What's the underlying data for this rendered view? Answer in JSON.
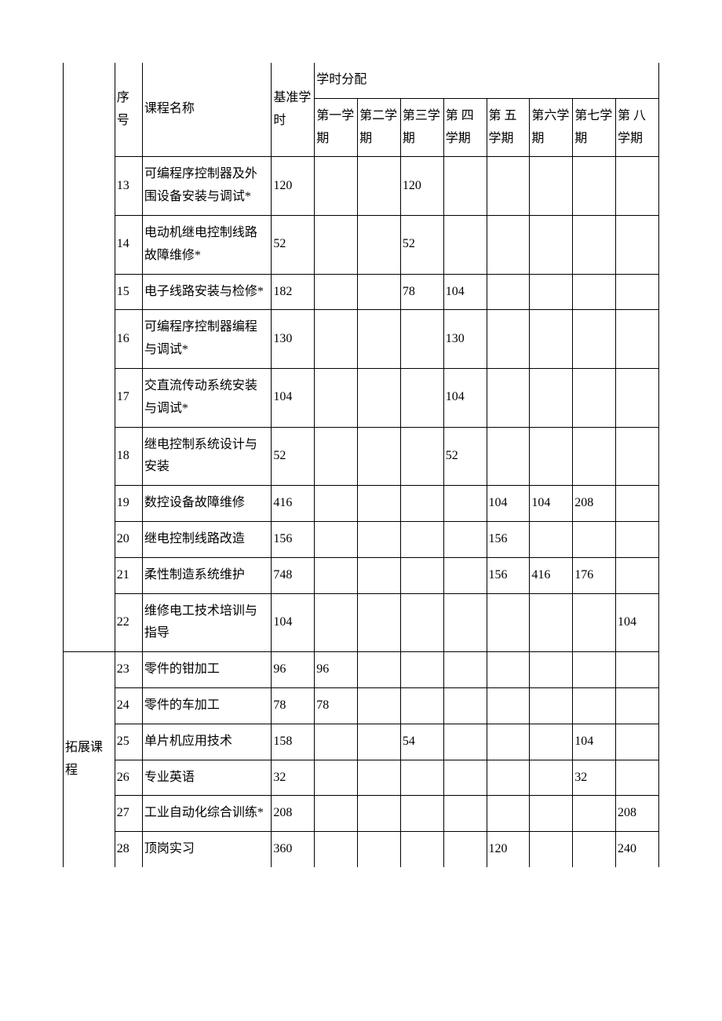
{
  "headers": {
    "num": "序号",
    "name": "课程名称",
    "base": "基准学时",
    "dist": "学时分配",
    "s1": "第一学期",
    "s2": "第二学期",
    "s3": "第三学期",
    "s4": "第 四学期",
    "s5": "第 五学期",
    "s6": "第六学期",
    "s7": "第七学期",
    "s8": "第 八学期"
  },
  "category2": "拓展课程",
  "rows": [
    {
      "num": "13",
      "name": "可编程序控制器及外围设备安装与调试*",
      "base": "120",
      "cells": [
        "",
        "",
        "120",
        "",
        "",
        "",
        "",
        ""
      ]
    },
    {
      "num": "14",
      "name": "电动机继电控制线路故障维修*",
      "base": "52",
      "cells": [
        "",
        "",
        "52",
        "",
        "",
        "",
        "",
        ""
      ]
    },
    {
      "num": "15",
      "name": "电子线路安装与检修*",
      "base": "182",
      "cells": [
        "",
        "",
        "78",
        "104",
        "",
        "",
        "",
        ""
      ]
    },
    {
      "num": "16",
      "name": "可编程序控制器编程与调试*",
      "base": "130",
      "cells": [
        "",
        "",
        "",
        "130",
        "",
        "",
        "",
        ""
      ]
    },
    {
      "num": "17",
      "name": "交直流传动系统安装与调试*",
      "base": "104",
      "cells": [
        "",
        "",
        "",
        "104",
        "",
        "",
        "",
        ""
      ]
    },
    {
      "num": "18",
      "name": "继电控制系统设计与安装",
      "base": "52",
      "cells": [
        "",
        "",
        "",
        "52",
        "",
        "",
        "",
        ""
      ]
    },
    {
      "num": "19",
      "name": "数控设备故障维修",
      "base": "416",
      "cells": [
        "",
        "",
        "",
        "",
        "104",
        "104",
        "208",
        ""
      ]
    },
    {
      "num": "20",
      "name": "继电控制线路改造",
      "base": "156",
      "cells": [
        "",
        "",
        "",
        "",
        "156",
        "",
        "",
        ""
      ]
    },
    {
      "num": "21",
      "name": "柔性制造系统维护",
      "base": "748",
      "cells": [
        "",
        "",
        "",
        "",
        "156",
        "416",
        "176",
        ""
      ]
    },
    {
      "num": "22",
      "name": "维修电工技术培训与指导",
      "base": "104",
      "cells": [
        "",
        "",
        "",
        "",
        "",
        "",
        "",
        "104"
      ]
    },
    {
      "num": "23",
      "name": "零件的钳加工",
      "base": "96",
      "cells": [
        "96",
        "",
        "",
        "",
        "",
        "",
        "",
        ""
      ]
    },
    {
      "num": "24",
      "name": "零件的车加工",
      "base": "78",
      "cells": [
        "78",
        "",
        "",
        "",
        "",
        "",
        "",
        ""
      ]
    },
    {
      "num": "25",
      "name": "单片机应用技术",
      "base": "158",
      "cells": [
        "",
        "",
        "54",
        "",
        "",
        "",
        "104",
        ""
      ]
    },
    {
      "num": "26",
      "name": "专业英语",
      "base": "32",
      "cells": [
        "",
        "",
        "",
        "",
        "",
        "",
        "32",
        ""
      ]
    },
    {
      "num": "27",
      "name": "工业自动化综合训练*",
      "base": "208",
      "cells": [
        "",
        "",
        "",
        "",
        "",
        "",
        "",
        "208"
      ]
    },
    {
      "num": "28",
      "name": "顶岗实习",
      "base": "360",
      "cells": [
        "",
        "",
        "",
        "",
        "120",
        "",
        "",
        "240"
      ]
    }
  ]
}
